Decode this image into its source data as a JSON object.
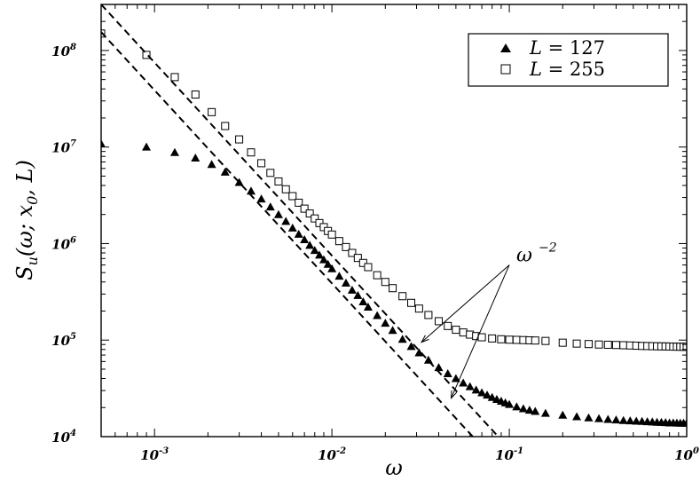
{
  "chart_data": {
    "type": "scatter",
    "x_scale": "log",
    "y_scale": "log",
    "xlim": [
      0.0005,
      1
    ],
    "ylim": [
      10000,
      300000000
    ],
    "xlabel": "ω",
    "ylabel_parts": {
      "base": "S",
      "sub": "u",
      "args": "(ω; x",
      "sub2": "0",
      "tail": ", L)"
    },
    "x_ticks": [
      {
        "value": 0.001,
        "base": "10",
        "exp": "-3"
      },
      {
        "value": 0.01,
        "base": "10",
        "exp": "-2"
      },
      {
        "value": 0.1,
        "base": "10",
        "exp": "-1"
      },
      {
        "value": 1,
        "base": "10",
        "exp": "0"
      }
    ],
    "y_ticks": [
      {
        "value": 10000,
        "base": "10",
        "exp": "4"
      },
      {
        "value": 100000,
        "base": "10",
        "exp": "5"
      },
      {
        "value": 1000000,
        "base": "10",
        "exp": "6"
      },
      {
        "value": 10000000,
        "base": "10",
        "exp": "7"
      },
      {
        "value": 100000000,
        "base": "10",
        "exp": "8"
      }
    ],
    "legend_position": "top-right",
    "series": [
      {
        "name": "L = 127",
        "legend_lhs": "L",
        "legend_rhs": "= 127",
        "marker": "filled-triangle",
        "points": [
          [
            0.0005,
            10800000
          ],
          [
            0.0009,
            10000000
          ],
          [
            0.0013,
            8800000
          ],
          [
            0.0017,
            7700000
          ],
          [
            0.0021,
            6600000
          ],
          [
            0.0025,
            5500000
          ],
          [
            0.003,
            4300000
          ],
          [
            0.0035,
            3500000
          ],
          [
            0.004,
            2900000
          ],
          [
            0.0045,
            2400000
          ],
          [
            0.005,
            2000000
          ],
          [
            0.0055,
            1700000
          ],
          [
            0.006,
            1450000
          ],
          [
            0.0065,
            1250000
          ],
          [
            0.007,
            1100000
          ],
          [
            0.0075,
            960000
          ],
          [
            0.008,
            850000
          ],
          [
            0.0085,
            760000
          ],
          [
            0.009,
            680000
          ],
          [
            0.0095,
            610000
          ],
          [
            0.01,
            550000
          ],
          [
            0.011,
            460000
          ],
          [
            0.012,
            390000
          ],
          [
            0.013,
            330000
          ],
          [
            0.014,
            290000
          ],
          [
            0.015,
            250000
          ],
          [
            0.016,
            220000
          ],
          [
            0.018,
            180000
          ],
          [
            0.02,
            150000
          ],
          [
            0.022,
            126000
          ],
          [
            0.025,
            102000
          ],
          [
            0.028,
            86000
          ],
          [
            0.031,
            74000
          ],
          [
            0.035,
            62000
          ],
          [
            0.04,
            52000
          ],
          [
            0.045,
            45000
          ],
          [
            0.05,
            40000
          ],
          [
            0.055,
            36000
          ],
          [
            0.06,
            33000
          ],
          [
            0.065,
            30500
          ],
          [
            0.07,
            28500
          ],
          [
            0.075,
            27000
          ],
          [
            0.08,
            25500
          ],
          [
            0.085,
            24300
          ],
          [
            0.09,
            23300
          ],
          [
            0.095,
            22400
          ],
          [
            0.1,
            21600
          ],
          [
            0.11,
            20400
          ],
          [
            0.12,
            19500
          ],
          [
            0.13,
            18800
          ],
          [
            0.14,
            18300
          ],
          [
            0.16,
            17500
          ],
          [
            0.2,
            16700
          ],
          [
            0.24,
            16100
          ],
          [
            0.28,
            15700
          ],
          [
            0.32,
            15400
          ],
          [
            0.36,
            15100
          ],
          [
            0.4,
            14900
          ],
          [
            0.44,
            14700
          ],
          [
            0.48,
            14600
          ],
          [
            0.52,
            14500
          ],
          [
            0.56,
            14400
          ],
          [
            0.6,
            14300
          ],
          [
            0.64,
            14200
          ],
          [
            0.68,
            14100
          ],
          [
            0.72,
            14050
          ],
          [
            0.76,
            14000
          ],
          [
            0.8,
            13900
          ],
          [
            0.84,
            13900
          ],
          [
            0.88,
            13850
          ],
          [
            0.92,
            13800
          ],
          [
            0.96,
            13800
          ],
          [
            1.0,
            13800
          ]
        ]
      },
      {
        "name": "L = 255",
        "legend_lhs": "L",
        "legend_rhs": "= 255",
        "marker": "open-square",
        "points": [
          [
            0.0005,
            150000000
          ],
          [
            0.0009,
            90000000
          ],
          [
            0.0013,
            53000000
          ],
          [
            0.0017,
            35000000
          ],
          [
            0.0021,
            23000000
          ],
          [
            0.0025,
            16500000
          ],
          [
            0.003,
            12000000
          ],
          [
            0.0035,
            8800000
          ],
          [
            0.004,
            6800000
          ],
          [
            0.0045,
            5400000
          ],
          [
            0.005,
            4400000
          ],
          [
            0.0055,
            3650000
          ],
          [
            0.006,
            3100000
          ],
          [
            0.0065,
            2650000
          ],
          [
            0.007,
            2300000
          ],
          [
            0.0075,
            2050000
          ],
          [
            0.008,
            1820000
          ],
          [
            0.0085,
            1630000
          ],
          [
            0.009,
            1480000
          ],
          [
            0.0095,
            1350000
          ],
          [
            0.01,
            1240000
          ],
          [
            0.011,
            1060000
          ],
          [
            0.012,
            920000
          ],
          [
            0.013,
            800000
          ],
          [
            0.014,
            710000
          ],
          [
            0.015,
            630000
          ],
          [
            0.016,
            570000
          ],
          [
            0.018,
            470000
          ],
          [
            0.02,
            400000
          ],
          [
            0.022,
            345000
          ],
          [
            0.025,
            285000
          ],
          [
            0.028,
            243000
          ],
          [
            0.031,
            212000
          ],
          [
            0.035,
            182000
          ],
          [
            0.04,
            157000
          ],
          [
            0.045,
            140000
          ],
          [
            0.05,
            128000
          ],
          [
            0.055,
            120000
          ],
          [
            0.06,
            114000
          ],
          [
            0.065,
            110000
          ],
          [
            0.07,
            107000
          ],
          [
            0.08,
            104000
          ],
          [
            0.09,
            102000
          ],
          [
            0.1,
            101000
          ],
          [
            0.11,
            100500
          ],
          [
            0.12,
            100000
          ],
          [
            0.13,
            99500
          ],
          [
            0.14,
            99000
          ],
          [
            0.16,
            98000
          ],
          [
            0.2,
            94000
          ],
          [
            0.24,
            92000
          ],
          [
            0.28,
            91000
          ],
          [
            0.32,
            90000
          ],
          [
            0.36,
            89500
          ],
          [
            0.4,
            89000
          ],
          [
            0.44,
            88500
          ],
          [
            0.48,
            88000
          ],
          [
            0.52,
            87500
          ],
          [
            0.56,
            87000
          ],
          [
            0.6,
            86800
          ],
          [
            0.64,
            86500
          ],
          [
            0.68,
            86300
          ],
          [
            0.72,
            86100
          ],
          [
            0.76,
            86000
          ],
          [
            0.8,
            85800
          ],
          [
            0.84,
            85600
          ],
          [
            0.88,
            85500
          ],
          [
            0.92,
            85400
          ],
          [
            0.96,
            85300
          ],
          [
            1.0,
            85200
          ]
        ]
      }
    ],
    "reference_lines": [
      {
        "slope": -2,
        "from": [
          0.0005,
          300000000
        ],
        "to": [
          0.1,
          7500
        ]
      },
      {
        "slope": -2,
        "from": [
          0.0005,
          155000000
        ],
        "to": [
          0.07,
          7900
        ]
      }
    ],
    "annotation": {
      "base": "ω",
      "exp": "−2",
      "anchor": [
        0.1,
        600000
      ],
      "targets": [
        [
          0.032,
          95000
        ],
        [
          0.047,
          25000
        ]
      ]
    }
  }
}
